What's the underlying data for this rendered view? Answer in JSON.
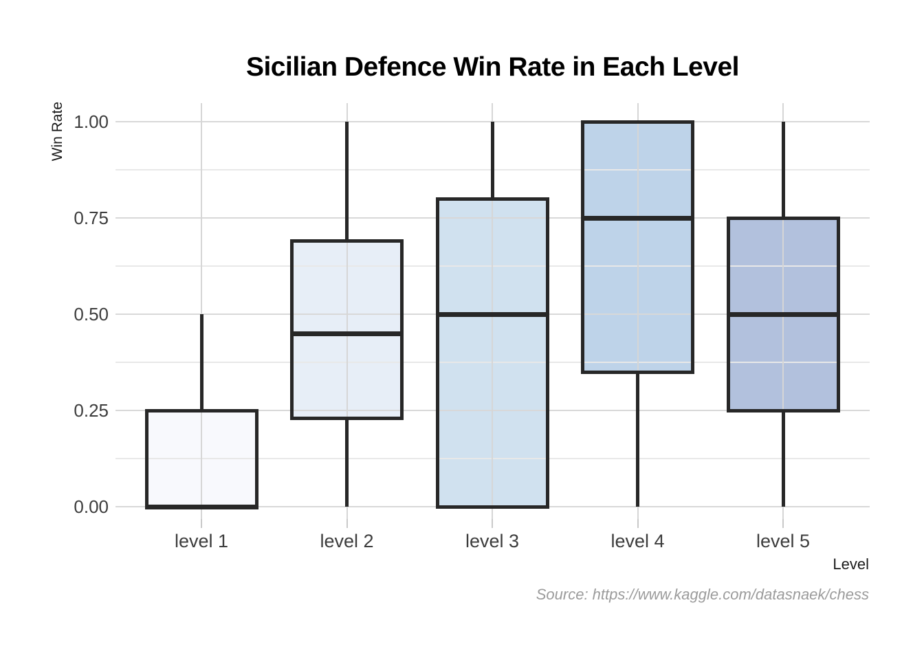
{
  "chart_data": {
    "type": "box",
    "title": "Sicilian Defence Win Rate in Each Level",
    "xlabel": "Level",
    "ylabel": "Win Rate",
    "source": "Source: https://www.kaggle.com/datasnaek/chess",
    "ylim": [
      0,
      1
    ],
    "ytick_labels": [
      "0.00",
      "0.25",
      "0.50",
      "0.75",
      "1.00"
    ],
    "ytick_values": [
      0,
      0.25,
      0.5,
      0.75,
      1.0
    ],
    "minor_grid_step": 0.125,
    "grid": "on",
    "legend": "none",
    "categories": [
      "level 1",
      "level 2",
      "level 3",
      "level 4",
      "level 5"
    ],
    "series": [
      {
        "category": "level 1",
        "whisker_low": 0.0,
        "q1": 0.0,
        "median": 0.0,
        "q3": 0.25,
        "whisker_high": 0.5,
        "fill": "#f8f9fd"
      },
      {
        "category": "level 2",
        "whisker_low": 0.0,
        "q1": 0.23,
        "median": 0.45,
        "q3": 0.69,
        "whisker_high": 1.0,
        "fill": "#e7eef7"
      },
      {
        "category": "level 3",
        "whisker_low": 0.0,
        "q1": 0.0,
        "median": 0.5,
        "q3": 0.8,
        "whisker_high": 1.0,
        "fill": "#d0e1ef"
      },
      {
        "category": "level 4",
        "whisker_low": 0.0,
        "q1": 0.35,
        "median": 0.75,
        "q3": 1.0,
        "whisker_high": 1.0,
        "fill": "#bed3e9"
      },
      {
        "category": "level 5",
        "whisker_low": 0.0,
        "q1": 0.25,
        "median": 0.5,
        "q3": 0.75,
        "whisker_high": 1.0,
        "fill": "#b2c1dd"
      }
    ],
    "colors": {
      "box_border": "#272727",
      "median": "#272727",
      "whisker": "#272727",
      "grid_major": "#d8d8d8",
      "grid_minor": "#e8e8e8",
      "grid_vertical": "#d6d6d6",
      "axis_tick": "#c9c9c9",
      "tick_label_text": "#3c3c3c",
      "title_text": "#000000",
      "source_text": "#9b9b9b"
    }
  }
}
